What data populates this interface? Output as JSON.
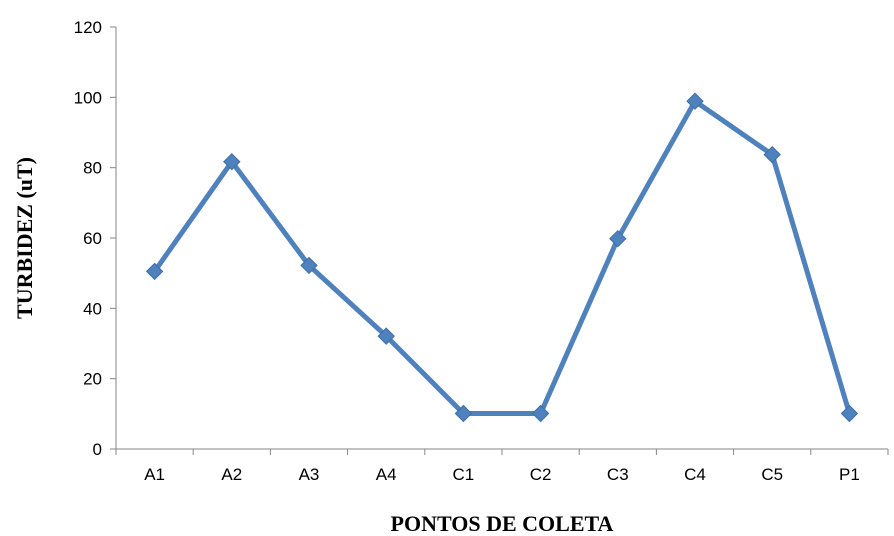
{
  "chart_data": {
    "type": "line",
    "title": "",
    "xlabel": "PONTOS DE COLETA",
    "ylabel": "TURBIDEZ (uT)",
    "categories": [
      "A1",
      "A2",
      "A3",
      "A4",
      "C1",
      "C2",
      "C3",
      "C4",
      "C5",
      "P1"
    ],
    "series": [
      {
        "values": [
          50.5,
          81.7,
          52.2,
          32.1,
          10.1,
          10.1,
          59.8,
          98.9,
          83.7,
          10.1
        ],
        "color": "#4F81BD",
        "marker": "diamond"
      }
    ],
    "ylim": [
      0,
      120
    ],
    "yticks": [
      "0",
      "20",
      "40",
      "60",
      "80",
      "100",
      "120"
    ],
    "grid": false,
    "legend": "none"
  }
}
